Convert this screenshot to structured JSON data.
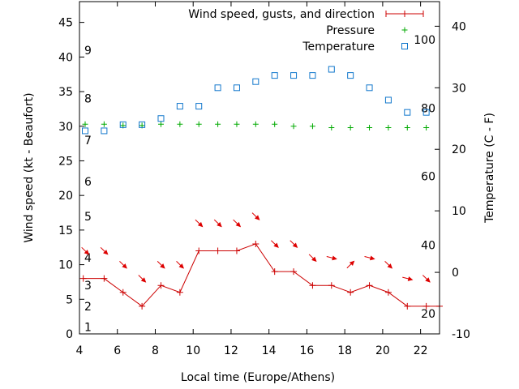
{
  "chart_data": {
    "type": "line",
    "xlabel": "Local time (Europe/Athens)",
    "ylabel_left": "Wind speed (kt - Beaufort)",
    "ylabel_right": "Temperature (C - F)",
    "xlim": [
      4,
      23
    ],
    "ylim_left": [
      0,
      48
    ],
    "ylim_right": [
      -10,
      44
    ],
    "x_ticks": [
      4,
      6,
      8,
      10,
      12,
      14,
      16,
      18,
      20,
      22
    ],
    "y_left_ticks": [
      0,
      5,
      10,
      15,
      20,
      25,
      30,
      35,
      40,
      45
    ],
    "y_right_ticks": [
      -10,
      0,
      10,
      20,
      30,
      40
    ],
    "beaufort_labels": [
      {
        "label": "1",
        "kt": 1
      },
      {
        "label": "2",
        "kt": 4
      },
      {
        "label": "3",
        "kt": 7
      },
      {
        "label": "4",
        "kt": 11
      },
      {
        "label": "5",
        "kt": 17
      },
      {
        "label": "6",
        "kt": 22
      },
      {
        "label": "7",
        "kt": 28
      },
      {
        "label": "8",
        "kt": 34
      },
      {
        "label": "9",
        "kt": 41
      }
    ],
    "fahrenheit_labels": [
      {
        "label": "20",
        "c": -6.7
      },
      {
        "label": "40",
        "c": 4.4
      },
      {
        "label": "60",
        "c": 15.6
      },
      {
        "label": "80",
        "c": 26.7
      },
      {
        "label": "100",
        "c": 37.8
      }
    ],
    "legend_position": "top-right",
    "series": [
      {
        "name": "Wind speed, gusts, and direction",
        "color": "#cc0000",
        "axis": "left",
        "x": [
          4.2,
          5.3,
          6.3,
          7.3,
          8.3,
          9.3,
          10.3,
          11.3,
          12.3,
          13.3,
          14.3,
          15.3,
          16.3,
          17.3,
          18.3,
          19.3,
          20.3,
          21.3,
          22.3,
          23
        ],
        "values": [
          8,
          8,
          6,
          4,
          7,
          6,
          12,
          12,
          12,
          13,
          9,
          9,
          7,
          7,
          6,
          7,
          6,
          4,
          4,
          4
        ]
      },
      {
        "name": "Pressure",
        "color": "#00aa00",
        "axis": "left",
        "x": [
          4.3,
          5.3,
          6.3,
          7.3,
          8.3,
          9.3,
          10.3,
          11.3,
          12.3,
          13.3,
          14.3,
          15.3,
          16.3,
          17.3,
          18.3,
          19.3,
          20.3,
          21.3,
          22.3
        ],
        "values": [
          30.3,
          30.3,
          30.1,
          30.1,
          30.3,
          30.3,
          30.3,
          30.3,
          30.3,
          30.3,
          30.3,
          30.0,
          30.0,
          29.8,
          29.8,
          29.8,
          29.8,
          29.8,
          29.8
        ]
      },
      {
        "name": "Temperature",
        "color": "#1177cc",
        "axis": "right",
        "x": [
          4.3,
          5.3,
          6.3,
          7.3,
          8.3,
          9.3,
          10.3,
          11.3,
          12.3,
          13.3,
          14.3,
          15.3,
          16.3,
          17.3,
          18.3,
          19.3,
          20.3,
          21.3,
          22.3
        ],
        "values": [
          23,
          23,
          24,
          24,
          25,
          27,
          27,
          30,
          30,
          31,
          32,
          32,
          32,
          33,
          32,
          30,
          28,
          26,
          26
        ]
      }
    ],
    "wind_arrows": {
      "color": "#dd0000",
      "x": [
        4.3,
        5.3,
        6.3,
        7.3,
        8.3,
        9.3,
        10.3,
        11.3,
        12.3,
        13.3,
        14.3,
        15.3,
        16.3,
        17.3,
        18.3,
        19.3,
        20.3,
        21.3,
        22.3
      ],
      "kt": [
        12,
        12,
        10,
        8,
        10,
        10,
        16,
        16,
        16,
        17,
        13,
        13,
        11,
        11,
        10,
        11,
        10,
        8,
        8
      ],
      "dir": [
        "NW",
        "NW",
        "NW",
        "NW",
        "NW",
        "NW",
        "NW",
        "NW",
        "NW",
        "NW",
        "NW",
        "NW",
        "NW",
        "W",
        "SW",
        "W",
        "NW",
        "W",
        "NW"
      ]
    }
  }
}
